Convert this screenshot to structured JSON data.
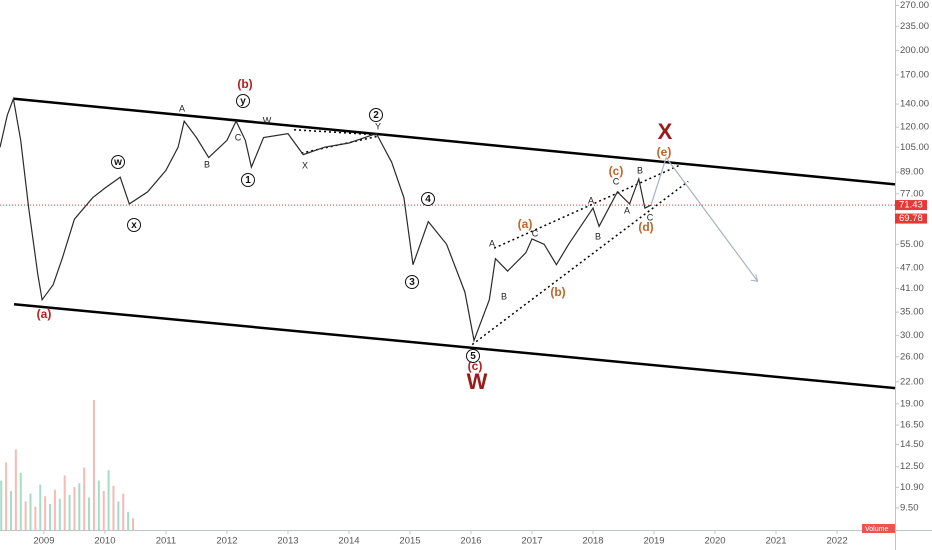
{
  "chart_data": {
    "type": "line",
    "log_scale": true,
    "xlim": [
      2008.28,
      2022.95
    ],
    "ylim": [
      8.2,
      280
    ],
    "xticks": [
      2009,
      2010,
      2011,
      2012,
      2013,
      2014,
      2015,
      2016,
      2017,
      2018,
      2019,
      2020,
      2021,
      2022
    ],
    "yticks": [
      {
        "value": 270,
        "label": "270.00"
      },
      {
        "value": 235,
        "label": "235.00"
      },
      {
        "value": 200,
        "label": "200.00"
      },
      {
        "value": 170,
        "label": "170.00"
      },
      {
        "value": 140,
        "label": "140.00"
      },
      {
        "value": 120,
        "label": "120.00"
      },
      {
        "value": 105,
        "label": "105.00"
      },
      {
        "value": 89,
        "label": "89.00"
      },
      {
        "value": 77,
        "label": "77.00"
      },
      {
        "value": 55,
        "label": "55.00"
      },
      {
        "value": 47,
        "label": "47.00"
      },
      {
        "value": 41,
        "label": "41.00"
      },
      {
        "value": 35,
        "label": "35.00"
      },
      {
        "value": 30,
        "label": "30.00"
      },
      {
        "value": 26,
        "label": "26.00"
      },
      {
        "value": 22,
        "label": "22.00"
      },
      {
        "value": 19,
        "label": "19.00"
      },
      {
        "value": 16.5,
        "label": "16.50"
      },
      {
        "value": 14.5,
        "label": "14.50"
      },
      {
        "value": 12.5,
        "label": "12.50"
      },
      {
        "value": 10.9,
        "label": "10.90"
      },
      {
        "value": 9.5,
        "label": "9.50"
      }
    ],
    "series": [
      {
        "color": "#2b2b2b",
        "x": [
          2008.28,
          2008.4,
          2008.5,
          2008.62,
          2008.75,
          2008.9,
          2008.97,
          2009.15,
          2009.3,
          2009.5,
          2009.8,
          2010.0,
          2010.25,
          2010.4,
          2010.7,
          2011.0,
          2011.2,
          2011.3,
          2011.5,
          2011.7,
          2012.0,
          2012.15,
          2012.3,
          2012.4,
          2012.6,
          2013.0,
          2013.25,
          2013.6,
          2014.0,
          2014.45,
          2014.7,
          2014.9,
          2015.05,
          2015.3,
          2015.6,
          2015.9,
          2016.05,
          2016.3,
          2016.4,
          2016.6,
          2016.9,
          2017.0,
          2017.2,
          2017.4,
          2017.6,
          2018.0,
          2018.1,
          2018.4,
          2018.6,
          2018.75,
          2018.85,
          2018.95
        ],
        "values": [
          105,
          130,
          145,
          110,
          70,
          45,
          38,
          42,
          50,
          65,
          75,
          80,
          86,
          72,
          78,
          90,
          105,
          125,
          112,
          98,
          110,
          125,
          110,
          92,
          112,
          115,
          100,
          105,
          108,
          115,
          95,
          75,
          48,
          64,
          55,
          40,
          29,
          38,
          50,
          46,
          52,
          57,
          55,
          48,
          55,
          70,
          62,
          78,
          72,
          85,
          70,
          71.43
        ]
      },
      {
        "color": "#aab2bd",
        "x": [
          2018.95,
          2019.2,
          2020.7
        ],
        "values": [
          71.43,
          98,
          43
        ]
      }
    ],
    "trendlines": [
      {
        "color": "#000000",
        "style": "solid",
        "x": [
          2008.51,
          2022.95
        ],
        "y": [
          145,
          82
        ]
      },
      {
        "color": "#000000",
        "style": "solid",
        "x": [
          2008.51,
          2022.95
        ],
        "y": [
          36.9,
          21.1
        ]
      },
      {
        "color": "#000000",
        "style": "dotted",
        "x": [
          2016.38,
          2019.47
        ],
        "y": [
          53.6,
          94
        ]
      },
      {
        "color": "#000000",
        "style": "dotted",
        "x": [
          2016.02,
          2019.56
        ],
        "y": [
          28.2,
          83.6
        ]
      },
      {
        "color": "#000000",
        "style": "dotted",
        "x": [
          2013.1,
          2014.48
        ],
        "y": [
          118,
          114
        ]
      },
      {
        "color": "#000000",
        "style": "dotted",
        "x": [
          2013.22,
          2014.48
        ],
        "y": [
          101,
          113
        ]
      }
    ],
    "price_line": {
      "color": "#e53935",
      "value": 71.43
    },
    "price_labels": [
      {
        "value": 71.43,
        "label": "71.43"
      },
      {
        "value": 69.78,
        "label": "69.78"
      }
    ],
    "volume": {
      "ylim": [
        0,
        100
      ],
      "x": [
        2008.3,
        2008.38,
        2008.46,
        2008.54,
        2008.62,
        2008.7,
        2008.78,
        2008.86,
        2008.94,
        2009.02,
        2009.1,
        2009.18,
        2009.26,
        2009.34,
        2009.42,
        2009.5,
        2009.58,
        2009.66,
        2009.74,
        2009.82,
        2009.9,
        2009.98,
        2010.06,
        2010.14,
        2010.22,
        2010.3,
        2010.38,
        2010.46
      ],
      "values": [
        38,
        52,
        30,
        62,
        44,
        22,
        28,
        18,
        35,
        26,
        20,
        31,
        24,
        42,
        27,
        33,
        36,
        48,
        25,
        100,
        38,
        30,
        46,
        34,
        22,
        28,
        14,
        9
      ],
      "colors": [
        "#8fd3b6",
        "#f4a9a3"
      ],
      "label": "Volume"
    },
    "annotations": [
      {
        "text": "(b)",
        "style": "red"
      },
      {
        "text": "y",
        "style": "circle"
      },
      {
        "text": "A",
        "style": "black"
      },
      {
        "text": "C",
        "style": "black"
      },
      {
        "text": "W",
        "style": "black"
      },
      {
        "text": "w",
        "style": "circle"
      },
      {
        "text": "x",
        "style": "circle"
      },
      {
        "text": "B",
        "style": "black"
      },
      {
        "text": "1",
        "style": "circle"
      },
      {
        "text": "2",
        "style": "circle"
      },
      {
        "text": "Y",
        "style": "black"
      },
      {
        "text": "X",
        "style": "black"
      },
      {
        "text": "X",
        "style": "big"
      },
      {
        "text": "(e)",
        "style": "orange"
      },
      {
        "text": "(c)",
        "style": "orange"
      },
      {
        "text": "B",
        "style": "black"
      },
      {
        "text": "C",
        "style": "black"
      },
      {
        "text": "A",
        "style": "black"
      },
      {
        "text": "A",
        "style": "black"
      },
      {
        "text": "C",
        "style": "black"
      },
      {
        "text": "(d)",
        "style": "orange"
      },
      {
        "text": "B",
        "style": "black"
      },
      {
        "text": "(a)",
        "style": "orange"
      },
      {
        "text": "C",
        "style": "black"
      },
      {
        "text": "A",
        "style": "black"
      },
      {
        "text": "B",
        "style": "black"
      },
      {
        "text": "(b)",
        "style": "orange"
      },
      {
        "text": "4",
        "style": "circle"
      },
      {
        "text": "3",
        "style": "circle"
      },
      {
        "text": "5",
        "style": "circle"
      },
      {
        "text": "(c)",
        "style": "red"
      },
      {
        "text": "W",
        "style": "big"
      },
      {
        "text": "(a)",
        "style": "red"
      }
    ]
  }
}
